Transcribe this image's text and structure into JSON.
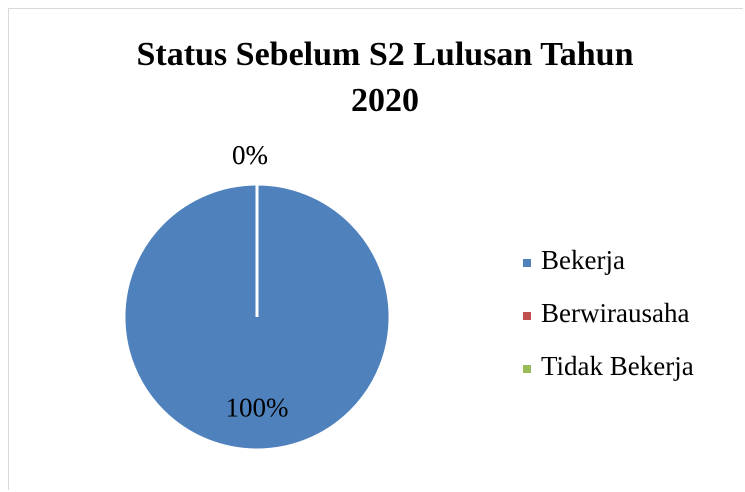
{
  "chart_data": {
    "type": "pie",
    "title": "Status Sebelum S2 Lulusan Tahun 2020",
    "categories": [
      "Bekerja",
      "Berwirausaha",
      "Tidak Bekerja"
    ],
    "values": [
      100,
      0,
      0
    ],
    "value_labels": [
      "100%",
      "0%",
      "0%"
    ],
    "colors": [
      "#4f81bd",
      "#c0504d",
      "#9bbb59"
    ],
    "legend": "right"
  }
}
